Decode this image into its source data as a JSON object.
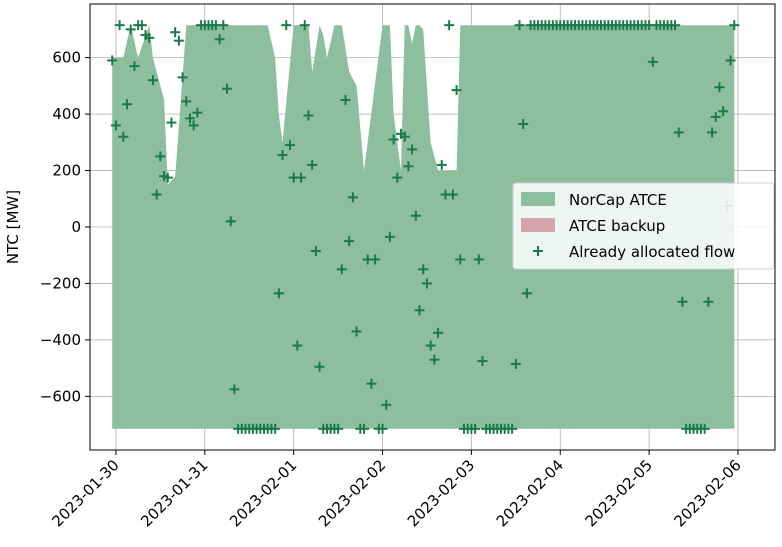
{
  "chart_data": {
    "type": "area",
    "ylabel": "NTC [MW]",
    "xlabel": "",
    "ylim": [
      -790,
      790
    ],
    "xlim": [
      "2023-01-29T17:00",
      "2023-02-06T10:00"
    ],
    "x_ticks": [
      "2023-01-30",
      "2023-01-31",
      "2023-02-01",
      "2023-02-02",
      "2023-02-03",
      "2023-02-04",
      "2023-02-05",
      "2023-02-06"
    ],
    "y_ticks": [
      -600,
      -400,
      -200,
      0,
      200,
      400,
      600
    ],
    "grid": true,
    "legend_position": "center-right",
    "colors": {
      "norcap_fill": "#8dbf9f",
      "backup_fill": "#d4a5ab",
      "marker": "#1a7a47"
    },
    "series": [
      {
        "name": "NorCap ATCE",
        "kind": "band",
        "x": [
          "2023-01-29T23:00",
          "2023-01-30T02:00",
          "2023-01-30T04:00",
          "2023-01-30T06:00",
          "2023-01-30T09:00",
          "2023-01-30T10:00",
          "2023-01-30T13:00",
          "2023-01-30T14:00",
          "2023-01-30T16:00",
          "2023-01-30T19:00",
          "2023-01-31T00:00",
          "2023-01-31T08:00",
          "2023-01-31T11:00",
          "2023-01-31T14:00",
          "2023-01-31T17:00",
          "2023-01-31T19:00",
          "2023-01-31T20:00",
          "2023-01-31T21:00",
          "2023-02-01T00:00",
          "2023-02-01T01:00",
          "2023-02-01T02:00",
          "2023-02-01T04:00",
          "2023-02-01T05:00",
          "2023-02-01T07:00",
          "2023-02-01T08:00",
          "2023-02-01T09:00",
          "2023-02-01T11:00",
          "2023-02-01T13:00",
          "2023-02-01T15:00",
          "2023-02-01T17:00",
          "2023-02-01T19:00",
          "2023-02-02T00:00",
          "2023-02-02T02:00",
          "2023-02-02T03:00",
          "2023-02-02T05:00",
          "2023-02-02T06:00",
          "2023-02-02T07:00",
          "2023-02-02T08:00",
          "2023-02-02T09:00",
          "2023-02-02T10:00",
          "2023-02-02T11:00",
          "2023-02-02T13:00",
          "2023-02-02T15:00",
          "2023-02-02T16:00",
          "2023-02-02T19:00",
          "2023-02-02T20:00",
          "2023-02-02T21:00",
          "2023-02-02T22:00",
          "2023-02-03T09:00",
          "2023-02-03T10:00",
          "2023-02-03T12:00",
          "2023-02-03T13:00",
          "2023-02-03T14:00",
          "2023-02-03T16:00",
          "2023-02-03T17:00",
          "2023-02-03T19:00",
          "2023-02-03T20:00",
          "2023-02-03T22:00",
          "2023-02-04T00:00",
          "2023-02-04T12:00",
          "2023-02-04T14:00",
          "2023-02-04T16:00",
          "2023-02-04T18:00",
          "2023-02-04T20:00",
          "2023-02-05T04:00",
          "2023-02-05T06:00",
          "2023-02-05T07:00",
          "2023-02-05T09:00",
          "2023-02-05T11:00",
          "2023-02-05T12:00",
          "2023-02-05T13:00",
          "2023-02-05T14:00",
          "2023-02-05T16:00",
          "2023-02-05T17:00",
          "2023-02-05T19:00",
          "2023-02-05T23:00"
        ],
        "upper": [
          600,
          600,
          715,
          600,
          715,
          600,
          450,
          150,
          180,
          715,
          715,
          715,
          715,
          715,
          715,
          600,
          400,
          300,
          715,
          715,
          715,
          715,
          550,
          715,
          680,
          600,
          715,
          715,
          550,
          500,
          200,
          715,
          715,
          400,
          200,
          715,
          715,
          650,
          715,
          715,
          700,
          300,
          200,
          200,
          200,
          200,
          715,
          715,
          715,
          715,
          715,
          715,
          715,
          715,
          715,
          715,
          715,
          715,
          715,
          715,
          715,
          715,
          715,
          715,
          715,
          715,
          715,
          715,
          715,
          715,
          715,
          715,
          715,
          715,
          715,
          715
        ],
        "lower": [
          -715,
          -715,
          -715,
          -715,
          -715,
          -715,
          -715,
          -715,
          -715,
          -715,
          -715,
          -715,
          -715,
          -715,
          -715,
          -715,
          -715,
          -715,
          -715,
          -715,
          -715,
          -715,
          -715,
          -715,
          -715,
          -715,
          -715,
          -715,
          -715,
          -715,
          -715,
          -715,
          -715,
          -715,
          -715,
          -715,
          -715,
          -715,
          -715,
          -715,
          -715,
          -715,
          -715,
          -715,
          -715,
          -715,
          -715,
          -715,
          -715,
          -715,
          -715,
          -715,
          -715,
          -715,
          -715,
          -715,
          -715,
          -715,
          -715,
          -715,
          -715,
          -715,
          -715,
          -715,
          -715,
          -715,
          -715,
          -715,
          -715,
          -715,
          -715,
          -715,
          -715,
          -715,
          -715,
          -715
        ]
      },
      {
        "name": "ATCE backup",
        "kind": "band",
        "x": [],
        "upper": [],
        "lower": []
      },
      {
        "name": "Already allocated flow",
        "kind": "scatter",
        "marker": "+",
        "x": [
          "2023-01-29T23:00",
          "2023-01-30T00:00",
          "2023-01-30T01:00",
          "2023-01-30T02:00",
          "2023-01-30T03:00",
          "2023-01-30T04:00",
          "2023-01-30T05:00",
          "2023-01-30T06:00",
          "2023-01-30T07:00",
          "2023-01-30T08:00",
          "2023-01-30T09:00",
          "2023-01-30T10:00",
          "2023-01-30T11:00",
          "2023-01-30T12:00",
          "2023-01-30T13:00",
          "2023-01-30T14:00",
          "2023-01-30T15:00",
          "2023-01-30T16:00",
          "2023-01-30T17:00",
          "2023-01-30T18:00",
          "2023-01-30T19:00",
          "2023-01-30T20:00",
          "2023-01-30T21:00",
          "2023-01-30T22:00",
          "2023-01-30T23:00",
          "2023-01-31T00:00",
          "2023-01-31T01:00",
          "2023-01-31T02:00",
          "2023-01-31T03:00",
          "2023-01-31T04:00",
          "2023-01-31T05:00",
          "2023-01-31T06:00",
          "2023-01-31T07:00",
          "2023-01-31T08:00",
          "2023-01-31T09:00",
          "2023-01-31T10:00",
          "2023-01-31T11:00",
          "2023-01-31T12:00",
          "2023-01-31T13:00",
          "2023-01-31T14:00",
          "2023-01-31T15:00",
          "2023-01-31T16:00",
          "2023-01-31T17:00",
          "2023-01-31T18:00",
          "2023-01-31T19:00",
          "2023-01-31T20:00",
          "2023-01-31T21:00",
          "2023-01-31T22:00",
          "2023-01-31T23:00",
          "2023-02-01T00:00",
          "2023-02-01T01:00",
          "2023-02-01T02:00",
          "2023-02-01T03:00",
          "2023-02-01T04:00",
          "2023-02-01T05:00",
          "2023-02-01T06:00",
          "2023-02-01T07:00",
          "2023-02-01T08:00",
          "2023-02-01T09:00",
          "2023-02-01T10:00",
          "2023-02-01T11:00",
          "2023-02-01T12:00",
          "2023-02-01T13:00",
          "2023-02-01T14:00",
          "2023-02-01T15:00",
          "2023-02-01T16:00",
          "2023-02-01T17:00",
          "2023-02-01T18:00",
          "2023-02-01T19:00",
          "2023-02-01T20:00",
          "2023-02-01T21:00",
          "2023-02-01T22:00",
          "2023-02-01T23:00",
          "2023-02-02T00:00",
          "2023-02-02T01:00",
          "2023-02-02T02:00",
          "2023-02-02T03:00",
          "2023-02-02T04:00",
          "2023-02-02T05:00",
          "2023-02-02T06:00",
          "2023-02-02T07:00",
          "2023-02-02T08:00",
          "2023-02-02T09:00",
          "2023-02-02T10:00",
          "2023-02-02T11:00",
          "2023-02-02T12:00",
          "2023-02-02T13:00",
          "2023-02-02T14:00",
          "2023-02-02T15:00",
          "2023-02-02T16:00",
          "2023-02-02T17:00",
          "2023-02-02T18:00",
          "2023-02-02T19:00",
          "2023-02-02T20:00",
          "2023-02-02T21:00",
          "2023-02-02T22:00",
          "2023-02-02T23:00",
          "2023-02-03T00:00",
          "2023-02-03T01:00",
          "2023-02-03T02:00",
          "2023-02-03T03:00",
          "2023-02-03T04:00",
          "2023-02-03T05:00",
          "2023-02-03T06:00",
          "2023-02-03T07:00",
          "2023-02-03T08:00",
          "2023-02-03T09:00",
          "2023-02-03T10:00",
          "2023-02-03T11:00",
          "2023-02-03T12:00",
          "2023-02-03T13:00",
          "2023-02-03T14:00",
          "2023-02-03T15:00",
          "2023-02-03T16:00",
          "2023-02-03T17:00",
          "2023-02-03T18:00",
          "2023-02-03T19:00",
          "2023-02-03T20:00",
          "2023-02-03T21:00",
          "2023-02-03T22:00",
          "2023-02-03T23:00",
          "2023-02-04T00:00",
          "2023-02-04T01:00",
          "2023-02-04T02:00",
          "2023-02-04T03:00",
          "2023-02-04T04:00",
          "2023-02-04T05:00",
          "2023-02-04T06:00",
          "2023-02-04T07:00",
          "2023-02-04T08:00",
          "2023-02-04T09:00",
          "2023-02-04T10:00",
          "2023-02-04T11:00",
          "2023-02-04T12:00",
          "2023-02-04T13:00",
          "2023-02-04T14:00",
          "2023-02-04T15:00",
          "2023-02-04T16:00",
          "2023-02-04T17:00",
          "2023-02-04T18:00",
          "2023-02-04T19:00",
          "2023-02-04T20:00",
          "2023-02-04T21:00",
          "2023-02-04T22:00",
          "2023-02-04T23:00",
          "2023-02-05T00:00",
          "2023-02-05T01:00",
          "2023-02-05T02:00",
          "2023-02-05T03:00",
          "2023-02-05T04:00",
          "2023-02-05T05:00",
          "2023-02-05T06:00",
          "2023-02-05T07:00",
          "2023-02-05T08:00",
          "2023-02-05T09:00",
          "2023-02-05T10:00",
          "2023-02-05T11:00",
          "2023-02-05T12:00",
          "2023-02-05T13:00",
          "2023-02-05T14:00",
          "2023-02-05T15:00",
          "2023-02-05T16:00",
          "2023-02-05T17:00",
          "2023-02-05T18:00",
          "2023-02-05T19:00",
          "2023-02-05T20:00",
          "2023-02-05T21:00",
          "2023-02-05T22:00",
          "2023-02-05T23:00"
        ],
        "y": [
          590,
          360,
          715,
          320,
          435,
          700,
          570,
          715,
          715,
          680,
          670,
          520,
          115,
          250,
          180,
          175,
          370,
          690,
          660,
          530,
          445,
          385,
          360,
          405,
          715,
          715,
          715,
          715,
          715,
          665,
          715,
          490,
          20,
          -575,
          -715,
          -715,
          -715,
          -715,
          -715,
          -715,
          -715,
          -715,
          -715,
          -715,
          -715,
          -235,
          255,
          715,
          290,
          175,
          -420,
          175,
          715,
          395,
          220,
          -85,
          -495,
          -715,
          -715,
          -715,
          -715,
          -715,
          -150,
          450,
          -50,
          105,
          -370,
          -715,
          -715,
          -115,
          -555,
          -115,
          -715,
          -715,
          -630,
          -35,
          310,
          175,
          330,
          320,
          215,
          275,
          40,
          -295,
          -150,
          -200,
          -420,
          -470,
          -375,
          220,
          115,
          715,
          115,
          485,
          -115,
          -715,
          -715,
          -715,
          -715,
          -115,
          -475,
          -715,
          -715,
          -715,
          -715,
          -715,
          -715,
          -715,
          -715,
          -485,
          715,
          365,
          -235,
          715,
          715,
          715,
          715,
          715,
          715,
          715,
          715,
          715,
          715,
          715,
          715,
          715,
          715,
          715,
          715,
          715,
          715,
          715,
          715,
          715,
          715,
          715,
          715,
          715,
          715,
          715,
          715,
          715,
          715,
          715,
          715,
          715,
          585,
          715,
          715,
          715,
          715,
          715,
          715,
          335,
          -265,
          -715,
          -715,
          -715,
          -715,
          -715,
          -715,
          -265,
          335,
          390,
          495,
          410,
          75,
          590,
          715
        ]
      }
    ]
  }
}
